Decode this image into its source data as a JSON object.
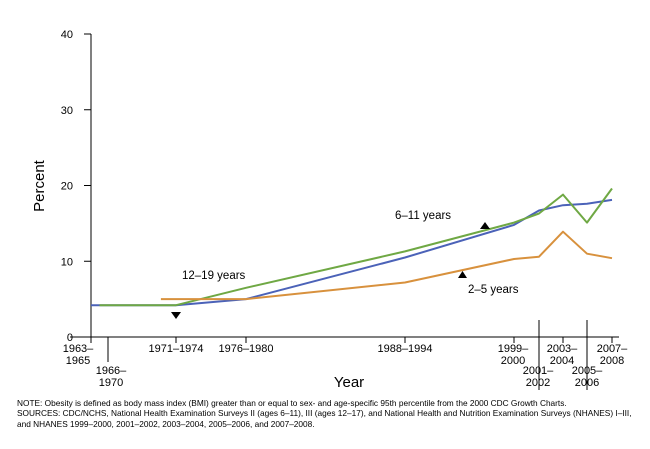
{
  "chart_data": {
    "type": "line",
    "title": "",
    "xlabel": "Year",
    "ylabel": "Percent",
    "ylim": [
      0,
      40
    ],
    "yticks": [
      0,
      10,
      20,
      30,
      40
    ],
    "grid": false,
    "x_tick_labels": [
      {
        "text": "1963–\n1965",
        "x": 1964
      },
      {
        "text": "1966–\n1970",
        "x": 1968
      },
      {
        "text": "1971–1974",
        "x": 1972.5
      },
      {
        "text": "1976–1980",
        "x": 1978
      },
      {
        "text": "1988–1994",
        "x": 1991
      },
      {
        "text": "1999–\n2000",
        "x": 1999.5
      },
      {
        "text": "2001–\n2002",
        "x": 2001.5
      },
      {
        "text": "2003–\n2004",
        "x": 2003.5
      },
      {
        "text": "2005–\n2006",
        "x": 2005.5
      },
      {
        "text": "2007–\n2008",
        "x": 2007.5
      }
    ],
    "series": [
      {
        "name": "12–19 years",
        "color": "#6aa84f",
        "x": [
          1964,
          1968,
          1972.5,
          1978,
          1991,
          1999.5,
          2001.5,
          2003.5,
          2005.5,
          2007.5
        ],
        "values": [
          4.2,
          4.2,
          4.2,
          5.0,
          10.5,
          14.8,
          16.7,
          17.4,
          17.6,
          18.1
        ]
      },
      {
        "name": "6–11 years",
        "color": "#7aa63f",
        "x": [
          1966,
          1972.5,
          1978,
          1991,
          1999.5,
          2001.5,
          2003.5,
          2005.5,
          2007.5
        ],
        "values": [
          4.2,
          4.2,
          6.5,
          11.3,
          15.1,
          16.3,
          18.8,
          15.1,
          19.6
        ]
      },
      {
        "name": "2–5 years",
        "color": "#d6923a",
        "x": [
          1971.5,
          1978,
          1991,
          1999.5,
          2001.5,
          2003.5,
          2005.5,
          2007.5
        ],
        "values": [
          5.0,
          5.0,
          7.2,
          10.3,
          10.6,
          13.9,
          11.0,
          10.4
        ]
      }
    ]
  },
  "notes": {
    "note": "NOTE: Obesity is defined as body mass index (BMI) greater than or equal to sex- and age-specific 95th percentile from the 2000 CDC Growth Charts.",
    "sources": "SOURCES: CDC/NCHS, National Health Examination Surveys II (ages 6–11), III (ages 12–17), and National Health and Nutrition Examination Surveys (NHANES) I–III, and NHANES 1999–2000, 2001–2002, 2003–2004, 2005–2006, and 2007–2008."
  }
}
